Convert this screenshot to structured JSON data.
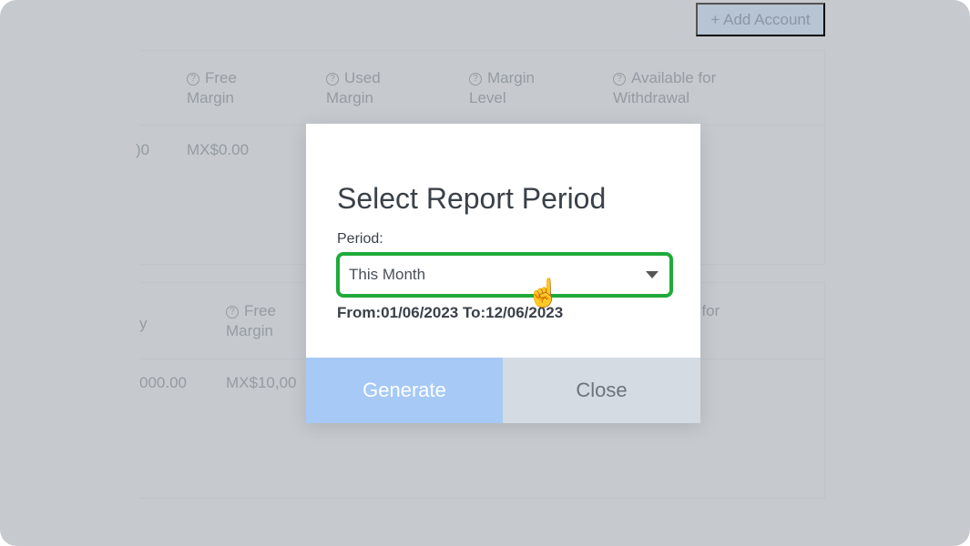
{
  "toolbar": {
    "add_account": "+ Add Account"
  },
  "panel1": {
    "headers": [
      "Free\nMargin",
      "Used\nMargin",
      "Margin\nLevel",
      "Available for\nWithdrawal"
    ],
    "cut_value": ")0",
    "free_margin": "MX$0.00"
  },
  "panel2": {
    "cut_header": "y",
    "free_margin_header": "Free\nMargin",
    "cut_header_right": "ble for\nval",
    "cut_value": "000.00",
    "free_margin": "MX$10,00"
  },
  "modal": {
    "title": "Select Report Period",
    "period_label": "Period:",
    "period_value": "This Month",
    "dates": "From:01/06/2023 To:12/06/2023",
    "generate": "Generate",
    "close": "Close"
  },
  "colors": {
    "highlight": "#1faa3a",
    "generate": "#a6c9f6"
  }
}
